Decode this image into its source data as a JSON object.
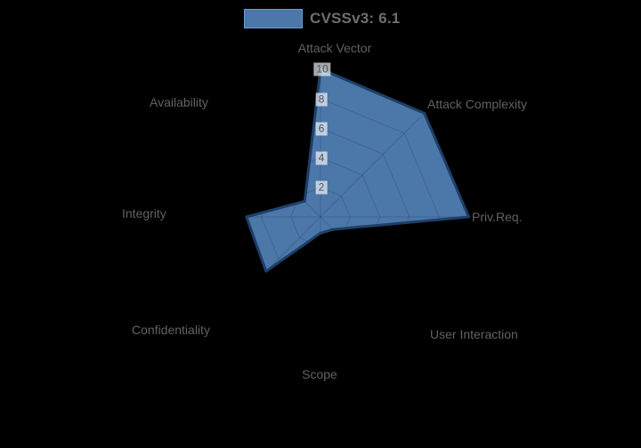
{
  "chart_data": {
    "type": "radar",
    "legend": "CVSSv3: 6.1",
    "categories": [
      "Attack Vector",
      "Attack Complexity",
      "Priv.Req.",
      "User Interaction",
      "Scope",
      "Confidentiality",
      "Integrity",
      "Availability"
    ],
    "values": [
      10,
      9.9,
      10,
      1.2,
      1.1,
      5.2,
      5,
      1.5
    ],
    "series": [
      {
        "name": "CVSSv3: 6.1",
        "values": [
          10,
          9.9,
          10,
          1.2,
          1.1,
          5.2,
          5,
          1.5
        ]
      }
    ],
    "rmax": 10,
    "rmin": 0,
    "tick_step": 2,
    "ticks": [
      "10",
      "8",
      "6",
      "4",
      "2"
    ],
    "grid": true,
    "legend_position": "top",
    "colors": {
      "series_fill": "#4b77a9",
      "series_border": "#1f3f68",
      "legend_swatch_border": "#6c9bd2",
      "grid_line": "rgba(0,0,0,0.14)",
      "background": "#000000",
      "axis_label": "#616161",
      "tick_text": "#4e545e",
      "tick_backdrop": "rgba(255,255,255,0.65)",
      "legend_text": "#6e6e6e"
    }
  }
}
